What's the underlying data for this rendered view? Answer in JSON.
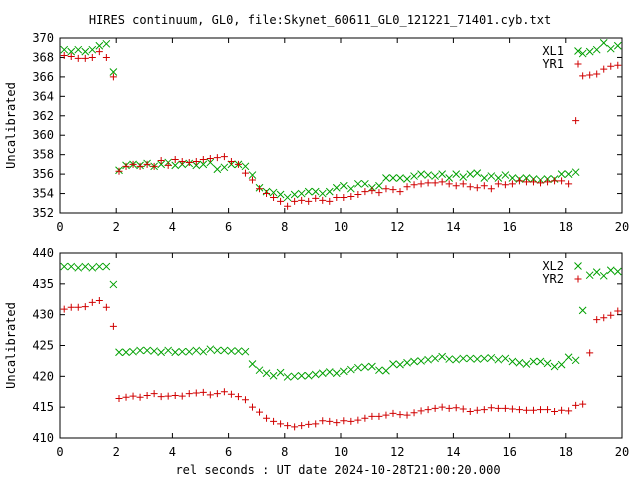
{
  "title": "HIRES continuum, GL0, file:Skynet_60611_GL0_121221_71401.cyb.txt",
  "xlabel": "rel seconds : UT date 2024-10-28T21:00:20.000",
  "chart_data": [
    {
      "type": "scatter",
      "ylabel": "Uncalibrated",
      "xlim": [
        0,
        20
      ],
      "ylim": [
        352,
        370
      ],
      "xticks": [
        0,
        2,
        4,
        6,
        8,
        10,
        12,
        14,
        16,
        18,
        20
      ],
      "yticks": [
        352,
        354,
        356,
        358,
        360,
        362,
        364,
        366,
        368,
        370
      ],
      "legend": "top-right",
      "series": [
        {
          "name": "XL1",
          "color": "#00a000",
          "marker": "x",
          "x": [
            0.15,
            0.4,
            0.65,
            0.9,
            1.15,
            1.4,
            1.65,
            1.9,
            2.1,
            2.35,
            2.6,
            2.85,
            3.1,
            3.35,
            3.6,
            3.85,
            4.1,
            4.35,
            4.6,
            4.85,
            5.1,
            5.35,
            5.6,
            5.85,
            6.1,
            6.35,
            6.6,
            6.85,
            7.1,
            7.35,
            7.6,
            7.85,
            8.1,
            8.35,
            8.6,
            8.85,
            9.1,
            9.35,
            9.6,
            9.85,
            10.1,
            10.35,
            10.6,
            10.85,
            11.1,
            11.35,
            11.6,
            11.85,
            12.1,
            12.35,
            12.6,
            12.85,
            13.1,
            13.35,
            13.6,
            13.85,
            14.1,
            14.35,
            14.6,
            14.85,
            15.1,
            15.35,
            15.6,
            15.85,
            16.1,
            16.35,
            16.6,
            16.85,
            17.1,
            17.35,
            17.6,
            17.85,
            18.1,
            18.35,
            18.6,
            18.85,
            19.1,
            19.35,
            19.6,
            19.85
          ],
          "y": [
            368.8,
            368.6,
            368.8,
            368.6,
            368.8,
            369.2,
            369.4,
            366.5,
            356.4,
            356.9,
            357.0,
            356.9,
            357.1,
            356.8,
            357.0,
            357.2,
            356.9,
            357.0,
            357.1,
            356.9,
            357.0,
            357.2,
            356.5,
            356.7,
            357.0,
            357.0,
            356.8,
            355.9,
            354.6,
            354.2,
            354.1,
            353.9,
            353.6,
            353.9,
            354.0,
            354.2,
            354.2,
            354.0,
            354.2,
            354.6,
            354.8,
            354.5,
            355.0,
            355.0,
            354.6,
            354.8,
            355.6,
            355.6,
            355.6,
            355.5,
            355.8,
            356.0,
            355.9,
            355.8,
            356.0,
            355.6,
            356.0,
            355.7,
            356.0,
            356.1,
            355.6,
            355.8,
            355.6,
            355.9,
            355.6,
            355.5,
            355.6,
            355.5,
            355.4,
            355.5,
            355.5,
            356.0,
            356.0,
            356.2,
            368.4,
            368.6,
            368.8,
            369.5,
            368.9,
            369.2
          ]
        },
        {
          "name": "YR1",
          "color": "#d00000",
          "marker": "+",
          "x": [
            0.15,
            0.4,
            0.65,
            0.9,
            1.15,
            1.4,
            1.65,
            1.9,
            2.1,
            2.35,
            2.6,
            2.85,
            3.1,
            3.35,
            3.6,
            3.85,
            4.1,
            4.35,
            4.6,
            4.85,
            5.1,
            5.35,
            5.6,
            5.85,
            6.1,
            6.35,
            6.6,
            6.85,
            7.1,
            7.35,
            7.6,
            7.85,
            8.1,
            8.35,
            8.6,
            8.85,
            9.1,
            9.35,
            9.6,
            9.85,
            10.1,
            10.35,
            10.6,
            10.85,
            11.1,
            11.35,
            11.6,
            11.85,
            12.1,
            12.35,
            12.6,
            12.85,
            13.1,
            13.35,
            13.6,
            13.85,
            14.1,
            14.35,
            14.6,
            14.85,
            15.1,
            15.35,
            15.6,
            15.85,
            16.1,
            16.35,
            16.6,
            16.85,
            17.1,
            17.35,
            17.6,
            17.85,
            18.1,
            18.35,
            18.6,
            18.85,
            19.1,
            19.35,
            19.6,
            19.85
          ],
          "y": [
            368.2,
            368.1,
            367.9,
            367.9,
            368.0,
            368.6,
            368.0,
            366.0,
            356.3,
            356.8,
            357.0,
            356.8,
            357.0,
            356.8,
            357.4,
            356.9,
            357.5,
            357.3,
            357.2,
            357.3,
            357.5,
            357.6,
            357.7,
            357.8,
            357.3,
            357.0,
            356.1,
            355.4,
            354.5,
            354.0,
            353.6,
            353.2,
            352.7,
            353.2,
            353.3,
            353.2,
            353.5,
            353.3,
            353.2,
            353.6,
            353.6,
            353.7,
            353.9,
            354.2,
            354.3,
            354.1,
            354.5,
            354.4,
            354.2,
            354.7,
            354.9,
            355.0,
            355.1,
            355.1,
            355.2,
            355.0,
            354.8,
            355.0,
            354.7,
            354.6,
            354.8,
            354.5,
            355.0,
            354.9,
            355.0,
            355.3,
            355.2,
            355.2,
            355.1,
            355.2,
            355.3,
            355.3,
            355.0,
            361.5,
            366.1,
            366.2,
            366.3,
            366.8,
            367.1,
            367.2
          ]
        }
      ]
    },
    {
      "type": "scatter",
      "ylabel": "Uncalibrated",
      "xlim": [
        0,
        20
      ],
      "ylim": [
        410,
        440
      ],
      "xticks": [
        0,
        2,
        4,
        6,
        8,
        10,
        12,
        14,
        16,
        18,
        20
      ],
      "yticks": [
        410,
        415,
        420,
        425,
        430,
        435,
        440
      ],
      "legend": "top-right",
      "series": [
        {
          "name": "XL2",
          "color": "#00a000",
          "marker": "x",
          "x": [
            0.15,
            0.4,
            0.65,
            0.9,
            1.15,
            1.4,
            1.65,
            1.9,
            2.1,
            2.35,
            2.6,
            2.85,
            3.1,
            3.35,
            3.6,
            3.85,
            4.1,
            4.35,
            4.6,
            4.85,
            5.1,
            5.35,
            5.6,
            5.85,
            6.1,
            6.35,
            6.6,
            6.85,
            7.1,
            7.35,
            7.6,
            7.85,
            8.1,
            8.35,
            8.6,
            8.85,
            9.1,
            9.35,
            9.6,
            9.85,
            10.1,
            10.35,
            10.6,
            10.85,
            11.1,
            11.35,
            11.6,
            11.85,
            12.1,
            12.35,
            12.6,
            12.85,
            13.1,
            13.35,
            13.6,
            13.85,
            14.1,
            14.35,
            14.6,
            14.85,
            15.1,
            15.35,
            15.6,
            15.85,
            16.1,
            16.35,
            16.6,
            16.85,
            17.1,
            17.35,
            17.6,
            17.85,
            18.1,
            18.35,
            18.6,
            18.85,
            19.1,
            19.35,
            19.6,
            19.85
          ],
          "y": [
            437.8,
            437.8,
            437.6,
            437.8,
            437.6,
            437.8,
            437.8,
            434.9,
            423.9,
            423.9,
            424.0,
            424.2,
            424.2,
            424.1,
            423.9,
            424.2,
            423.9,
            424.0,
            424.0,
            424.2,
            424.0,
            424.4,
            424.2,
            424.2,
            424.1,
            424.1,
            424.0,
            422.0,
            421.0,
            420.5,
            420.1,
            420.6,
            419.9,
            420.0,
            420.1,
            420.1,
            420.3,
            420.5,
            420.7,
            420.5,
            420.8,
            421.1,
            421.4,
            421.5,
            421.6,
            421.0,
            420.9,
            422.0,
            421.9,
            422.2,
            422.4,
            422.5,
            422.7,
            422.9,
            423.2,
            422.8,
            422.7,
            422.9,
            422.9,
            422.8,
            422.9,
            423.0,
            422.7,
            422.9,
            422.4,
            422.2,
            422.0,
            422.4,
            422.4,
            422.1,
            421.6,
            421.9,
            423.1,
            422.6,
            430.7,
            436.4,
            436.9,
            436.3,
            437.2,
            437.0
          ]
        },
        {
          "name": "YR2",
          "color": "#d00000",
          "marker": "+",
          "x": [
            0.15,
            0.4,
            0.65,
            0.9,
            1.15,
            1.4,
            1.65,
            1.9,
            2.1,
            2.35,
            2.6,
            2.85,
            3.1,
            3.35,
            3.6,
            3.85,
            4.1,
            4.35,
            4.6,
            4.85,
            5.1,
            5.35,
            5.6,
            5.85,
            6.1,
            6.35,
            6.6,
            6.85,
            7.1,
            7.35,
            7.6,
            7.85,
            8.1,
            8.35,
            8.6,
            8.85,
            9.1,
            9.35,
            9.6,
            9.85,
            10.1,
            10.35,
            10.6,
            10.85,
            11.1,
            11.35,
            11.6,
            11.85,
            12.1,
            12.35,
            12.6,
            12.85,
            13.1,
            13.35,
            13.6,
            13.85,
            14.1,
            14.35,
            14.6,
            14.85,
            15.1,
            15.35,
            15.6,
            15.85,
            16.1,
            16.35,
            16.6,
            16.85,
            17.1,
            17.35,
            17.6,
            17.85,
            18.1,
            18.35,
            18.6,
            18.85,
            19.1,
            19.35,
            19.6,
            19.85
          ],
          "y": [
            430.9,
            431.2,
            431.2,
            431.3,
            432.0,
            432.3,
            431.2,
            428.1,
            416.4,
            416.6,
            416.8,
            416.6,
            416.9,
            417.2,
            416.7,
            416.8,
            416.9,
            416.8,
            417.2,
            417.3,
            417.4,
            417.0,
            417.2,
            417.5,
            417.1,
            416.7,
            416.2,
            415.0,
            414.2,
            413.2,
            412.7,
            412.3,
            412.0,
            411.8,
            412.0,
            412.2,
            412.3,
            412.8,
            412.7,
            412.5,
            412.8,
            412.7,
            412.9,
            413.2,
            413.5,
            413.5,
            413.7,
            414.0,
            413.8,
            413.7,
            414.1,
            414.4,
            414.6,
            414.8,
            415.0,
            414.8,
            414.9,
            414.7,
            414.3,
            414.5,
            414.6,
            414.9,
            414.8,
            414.8,
            414.7,
            414.6,
            414.5,
            414.5,
            414.6,
            414.6,
            414.3,
            414.5,
            414.4,
            415.3,
            415.5,
            423.8,
            429.2,
            429.5,
            429.9,
            430.6
          ]
        }
      ]
    }
  ]
}
